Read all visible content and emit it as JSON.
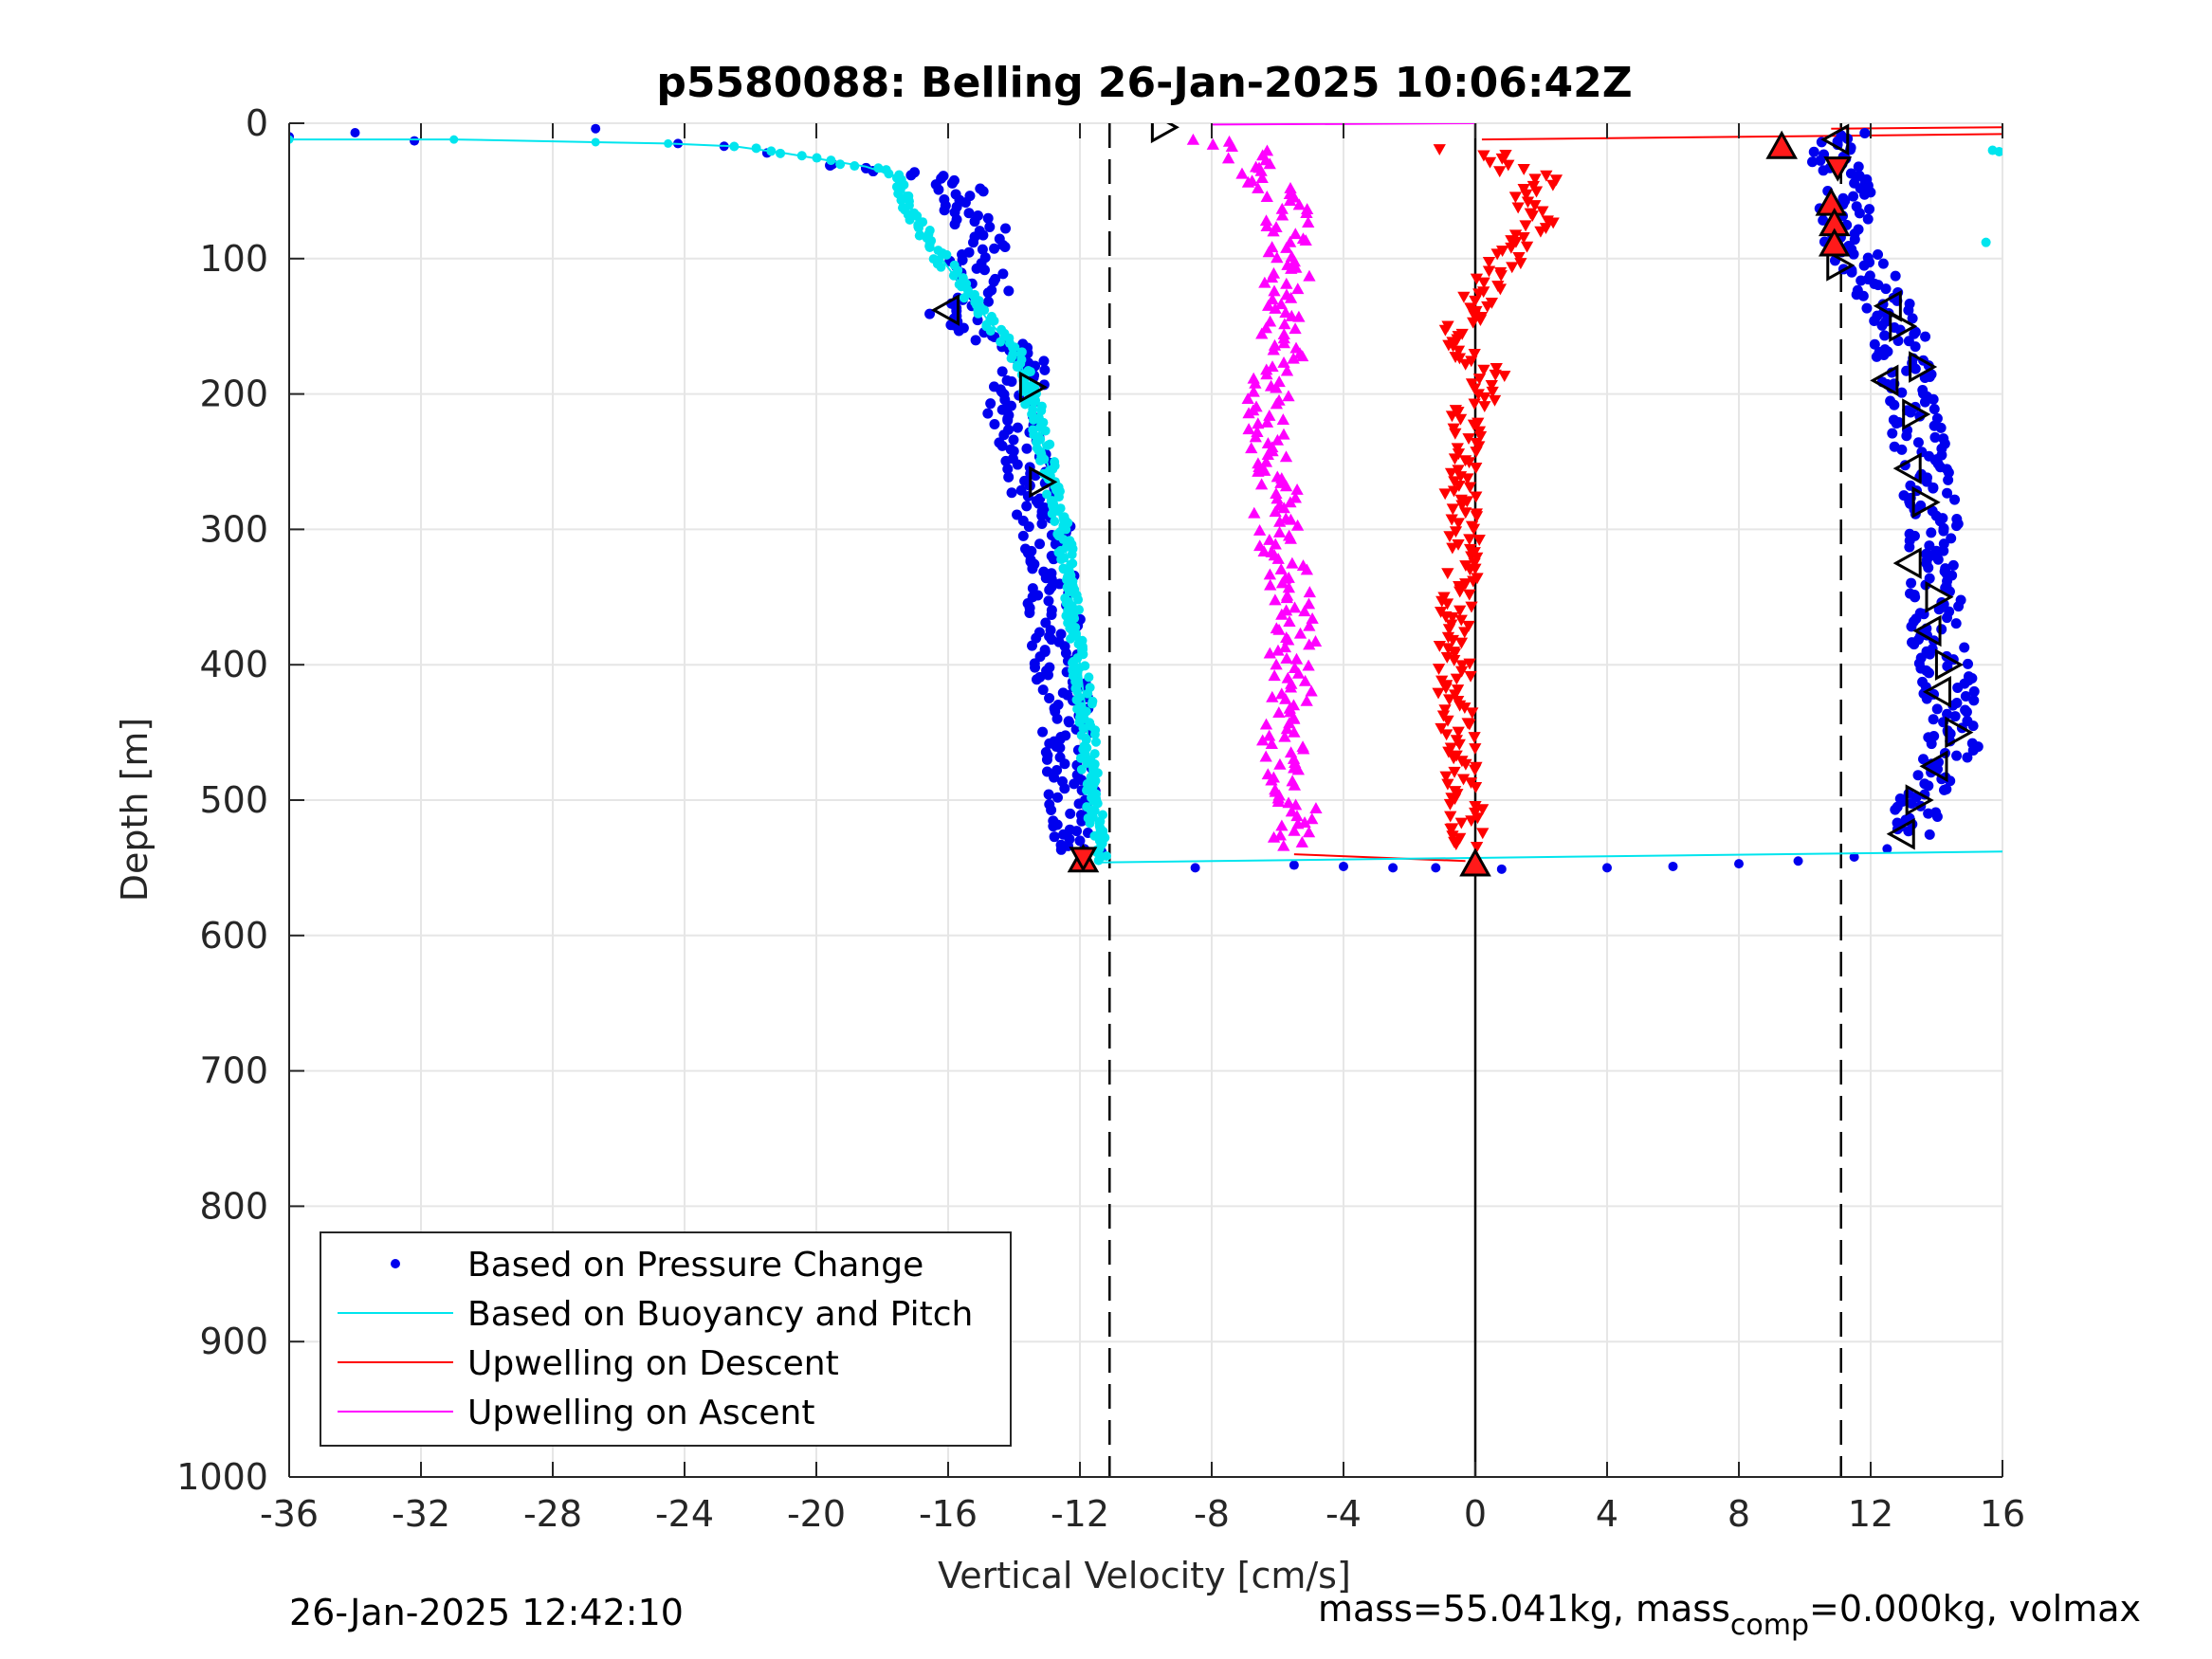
{
  "chart_data": {
    "type": "scatter",
    "title": "p5580088: Belling 26-Jan-2025 10:06:42Z",
    "xlabel": "Vertical Velocity [cm/s]",
    "ylabel": "Depth [m]",
    "xlim": [
      -36,
      16
    ],
    "ylim": [
      0,
      1000
    ],
    "y_reversed": true,
    "grid": true,
    "legend_position": "bottom-left",
    "xticks": [
      -36,
      -32,
      -28,
      -24,
      -20,
      -16,
      -12,
      -8,
      -4,
      0,
      4,
      8,
      12,
      16
    ],
    "yticks": [
      0,
      100,
      200,
      300,
      400,
      500,
      600,
      700,
      800,
      900,
      1000
    ],
    "reference_lines": [
      {
        "x": -11.1,
        "style": "dashed",
        "color": "#000000"
      },
      {
        "x": 0,
        "style": "solid",
        "color": "#000000"
      },
      {
        "x": 11.1,
        "style": "dashed",
        "color": "#000000"
      }
    ],
    "series": [
      {
        "name": "Based on Pressure Change",
        "kind": "points",
        "color": "#0000ee",
        "descent": [
          {
            "x": -36,
            "y": 10
          },
          {
            "x": -34,
            "y": 7
          },
          {
            "x": -32.2,
            "y": 13
          },
          {
            "x": -26.7,
            "y": 4
          },
          {
            "x": -24.2,
            "y": 15
          },
          {
            "x": -22.8,
            "y": 17
          },
          {
            "x": -21.5,
            "y": 22
          },
          {
            "x": -19.5,
            "y": 30
          },
          {
            "x": -18.5,
            "y": 33
          },
          {
            "x": -17.5,
            "y": 35
          },
          {
            "x": -16.3,
            "y": 40
          },
          {
            "x": -15.7,
            "y": 48
          },
          {
            "x": -15.5,
            "y": 62
          },
          {
            "x": -15.2,
            "y": 70
          },
          {
            "x": -14.8,
            "y": 85
          },
          {
            "x": -15.2,
            "y": 100
          },
          {
            "x": -15.0,
            "y": 110
          },
          {
            "x": -14.7,
            "y": 125
          },
          {
            "x": -15.8,
            "y": 140
          },
          {
            "x": -14.8,
            "y": 155
          },
          {
            "x": -14.0,
            "y": 170
          },
          {
            "x": -13.6,
            "y": 185
          },
          {
            "x": -14.0,
            "y": 200
          },
          {
            "x": -14.1,
            "y": 215
          },
          {
            "x": -13.8,
            "y": 235
          },
          {
            "x": -13.6,
            "y": 255
          },
          {
            "x": -13.4,
            "y": 270
          },
          {
            "x": -13.1,
            "y": 290
          },
          {
            "x": -12.9,
            "y": 310
          },
          {
            "x": -12.8,
            "y": 330
          },
          {
            "x": -12.8,
            "y": 350
          },
          {
            "x": -12.7,
            "y": 375
          },
          {
            "x": -12.6,
            "y": 400
          },
          {
            "x": -12.5,
            "y": 425
          },
          {
            "x": -12.4,
            "y": 450
          },
          {
            "x": -12.3,
            "y": 475
          },
          {
            "x": -12.3,
            "y": 500
          },
          {
            "x": -12.2,
            "y": 520
          },
          {
            "x": -12.1,
            "y": 540
          }
        ],
        "bottom": [
          {
            "x": -8.5,
            "y": 550
          },
          {
            "x": -5.5,
            "y": 548
          },
          {
            "x": -4.0,
            "y": 549
          },
          {
            "x": -2.5,
            "y": 550
          },
          {
            "x": -1.2,
            "y": 550
          },
          {
            "x": 0.8,
            "y": 551
          },
          {
            "x": 4.0,
            "y": 550
          },
          {
            "x": 6.0,
            "y": 549
          },
          {
            "x": 8.0,
            "y": 547
          },
          {
            "x": 9.8,
            "y": 545
          },
          {
            "x": 11.5,
            "y": 542
          },
          {
            "x": 12.5,
            "y": 536
          }
        ],
        "ascent": [
          {
            "x": 13.0,
            "y": 525
          },
          {
            "x": 13.4,
            "y": 505
          },
          {
            "x": 14.1,
            "y": 480
          },
          {
            "x": 14.5,
            "y": 460
          },
          {
            "x": 14.6,
            "y": 440
          },
          {
            "x": 14.4,
            "y": 420
          },
          {
            "x": 14.2,
            "y": 400
          },
          {
            "x": 14.0,
            "y": 380
          },
          {
            "x": 14.0,
            "y": 360
          },
          {
            "x": 13.9,
            "y": 340
          },
          {
            "x": 13.7,
            "y": 320
          },
          {
            "x": 13.9,
            "y": 300
          },
          {
            "x": 13.8,
            "y": 280
          },
          {
            "x": 13.7,
            "y": 260
          },
          {
            "x": 13.5,
            "y": 240
          },
          {
            "x": 13.4,
            "y": 220
          },
          {
            "x": 13.2,
            "y": 200
          },
          {
            "x": 13.0,
            "y": 180
          },
          {
            "x": 12.9,
            "y": 160
          },
          {
            "x": 12.6,
            "y": 140
          },
          {
            "x": 12.2,
            "y": 120
          },
          {
            "x": 11.6,
            "y": 100
          },
          {
            "x": 11.2,
            "y": 80
          },
          {
            "x": 11.2,
            "y": 60
          },
          {
            "x": 11.4,
            "y": 45
          },
          {
            "x": 11.0,
            "y": 30
          },
          {
            "x": 10.9,
            "y": 18
          },
          {
            "x": 11.3,
            "y": 8
          }
        ]
      },
      {
        "name": "Based on Buoyancy and Pitch",
        "kind": "line",
        "color": "#00e5ee",
        "descent": [
          {
            "x": -36,
            "y": 12
          },
          {
            "x": -31,
            "y": 12
          },
          {
            "x": -26.7,
            "y": 14
          },
          {
            "x": -24.5,
            "y": 15
          },
          {
            "x": -22.5,
            "y": 17
          },
          {
            "x": -21,
            "y": 22
          },
          {
            "x": -19.5,
            "y": 28
          },
          {
            "x": -18.5,
            "y": 32
          },
          {
            "x": -17.5,
            "y": 40
          },
          {
            "x": -17.2,
            "y": 60
          },
          {
            "x": -16.8,
            "y": 80
          },
          {
            "x": -16.2,
            "y": 100
          },
          {
            "x": -15.6,
            "y": 120
          },
          {
            "x": -14.8,
            "y": 145
          },
          {
            "x": -13.9,
            "y": 170
          },
          {
            "x": -13.5,
            "y": 200
          },
          {
            "x": -13.1,
            "y": 240
          },
          {
            "x": -12.7,
            "y": 280
          },
          {
            "x": -12.4,
            "y": 320
          },
          {
            "x": -12.2,
            "y": 360
          },
          {
            "x": -12.0,
            "y": 400
          },
          {
            "x": -11.8,
            "y": 440
          },
          {
            "x": -11.7,
            "y": 480
          },
          {
            "x": -11.5,
            "y": 520
          },
          {
            "x": -11.4,
            "y": 545
          }
        ],
        "bottom": [
          {
            "x": -11.4,
            "y": 546
          },
          {
            "x": 16,
            "y": 538
          }
        ],
        "ascent_points": [
          {
            "x": 15.7,
            "y": 20
          },
          {
            "x": 15.9,
            "y": 21
          },
          {
            "x": 15.5,
            "y": 88
          }
        ]
      },
      {
        "name": "Upwelling on Descent",
        "kind": "triangles-down",
        "color": "#ff0000",
        "values": [
          {
            "x": -0.6,
            "y": 20
          },
          {
            "x": 0.6,
            "y": 22
          },
          {
            "x": 1.2,
            "y": 35
          },
          {
            "x": 2.0,
            "y": 40
          },
          {
            "x": 1.6,
            "y": 55
          },
          {
            "x": 2.0,
            "y": 70
          },
          {
            "x": 1.6,
            "y": 85
          },
          {
            "x": 1.0,
            "y": 100
          },
          {
            "x": 0.4,
            "y": 120
          },
          {
            "x": -0.4,
            "y": 150
          },
          {
            "x": -0.5,
            "y": 165
          },
          {
            "x": 0.4,
            "y": 185
          },
          {
            "x": 0.2,
            "y": 200
          },
          {
            "x": -0.3,
            "y": 220
          },
          {
            "x": -0.2,
            "y": 240
          },
          {
            "x": -0.4,
            "y": 260
          },
          {
            "x": -0.4,
            "y": 280
          },
          {
            "x": -0.3,
            "y": 300
          },
          {
            "x": -0.4,
            "y": 320
          },
          {
            "x": -0.5,
            "y": 340
          },
          {
            "x": -0.5,
            "y": 360
          },
          {
            "x": -0.6,
            "y": 380
          },
          {
            "x": -0.7,
            "y": 400
          },
          {
            "x": -0.6,
            "y": 420
          },
          {
            "x": -0.5,
            "y": 440
          },
          {
            "x": -0.5,
            "y": 460
          },
          {
            "x": -0.4,
            "y": 480
          },
          {
            "x": -0.3,
            "y": 500
          },
          {
            "x": -0.2,
            "y": 520
          },
          {
            "x": -0.3,
            "y": 535
          }
        ],
        "connectors": [
          {
            "from": {
              "x": -5.5,
              "y": 540
            },
            "to": {
              "x": -0.3,
              "y": 545
            }
          },
          {
            "from": {
              "x": 0.2,
              "y": 12
            },
            "to": {
              "x": 16,
              "y": 8
            }
          },
          {
            "from": {
              "x": 10.8,
              "y": 4
            },
            "to": {
              "x": 16,
              "y": 3
            }
          }
        ]
      },
      {
        "name": "Upwelling on Ascent",
        "kind": "triangles-up",
        "color": "#ff00ff",
        "values": [
          {
            "x": -8.0,
            "y": 12
          },
          {
            "x": -7.0,
            "y": 20
          },
          {
            "x": -6.4,
            "y": 40
          },
          {
            "x": -5.8,
            "y": 60
          },
          {
            "x": -5.6,
            "y": 80
          },
          {
            "x": -5.8,
            "y": 100
          },
          {
            "x": -5.7,
            "y": 120
          },
          {
            "x": -5.8,
            "y": 140
          },
          {
            "x": -5.8,
            "y": 160
          },
          {
            "x": -6.0,
            "y": 180
          },
          {
            "x": -6.3,
            "y": 200
          },
          {
            "x": -6.4,
            "y": 220
          },
          {
            "x": -6.2,
            "y": 240
          },
          {
            "x": -6.0,
            "y": 260
          },
          {
            "x": -6.1,
            "y": 280
          },
          {
            "x": -6.0,
            "y": 300
          },
          {
            "x": -5.8,
            "y": 320
          },
          {
            "x": -5.7,
            "y": 340
          },
          {
            "x": -5.6,
            "y": 360
          },
          {
            "x": -5.5,
            "y": 380
          },
          {
            "x": -5.6,
            "y": 400
          },
          {
            "x": -5.6,
            "y": 420
          },
          {
            "x": -5.7,
            "y": 440
          },
          {
            "x": -5.8,
            "y": 460
          },
          {
            "x": -5.7,
            "y": 480
          },
          {
            "x": -5.5,
            "y": 500
          },
          {
            "x": -5.4,
            "y": 520
          },
          {
            "x": -5.8,
            "y": 535
          }
        ],
        "connectors": [
          {
            "from": {
              "x": -8.0,
              "y": 1
            },
            "to": {
              "x": 0,
              "y": 0
            }
          }
        ]
      }
    ],
    "markers": {
      "open_right": [
        {
          "x": -9.5,
          "y": 3
        },
        {
          "x": -13.5,
          "y": 195
        },
        {
          "x": -13.2,
          "y": 265
        },
        {
          "x": 11.0,
          "y": 105
        },
        {
          "x": 12.9,
          "y": 150
        },
        {
          "x": 13.5,
          "y": 180
        },
        {
          "x": 13.3,
          "y": 215
        },
        {
          "x": 13.6,
          "y": 280
        },
        {
          "x": 14.0,
          "y": 350
        },
        {
          "x": 14.3,
          "y": 400
        },
        {
          "x": 14.6,
          "y": 450
        },
        {
          "x": 13.4,
          "y": 500
        }
      ],
      "open_left": [
        {
          "x": -16.0,
          "y": 138
        },
        {
          "x": 11.0,
          "y": 12
        },
        {
          "x": 12.6,
          "y": 135
        },
        {
          "x": 12.5,
          "y": 190
        },
        {
          "x": 13.2,
          "y": 255
        },
        {
          "x": 13.2,
          "y": 325
        },
        {
          "x": 13.8,
          "y": 375
        },
        {
          "x": 14.1,
          "y": 420
        },
        {
          "x": 14.0,
          "y": 475
        },
        {
          "x": 13.0,
          "y": 525
        }
      ],
      "red_up": [
        {
          "x": 9.3,
          "y": 18
        },
        {
          "x": 10.8,
          "y": 60
        },
        {
          "x": 10.9,
          "y": 75
        },
        {
          "x": 10.9,
          "y": 90
        },
        {
          "x": -11.9,
          "y": 545
        },
        {
          "x": 0,
          "y": 548
        }
      ],
      "red_down": [
        {
          "x": 11.0,
          "y": 32
        },
        {
          "x": -11.9,
          "y": 542
        }
      ]
    },
    "legend": [
      "Based on Pressure Change",
      "Based on Buoyancy and Pitch",
      "Upwelling on Descent",
      "Upwelling on Ascent"
    ]
  },
  "footer": {
    "timestamp": "26-Jan-2025 12:42:10",
    "mass_prefix": "mass=55.041kg, mass",
    "mass_subscript": "comp",
    "mass_suffix": "=0.000kg, volmax"
  }
}
